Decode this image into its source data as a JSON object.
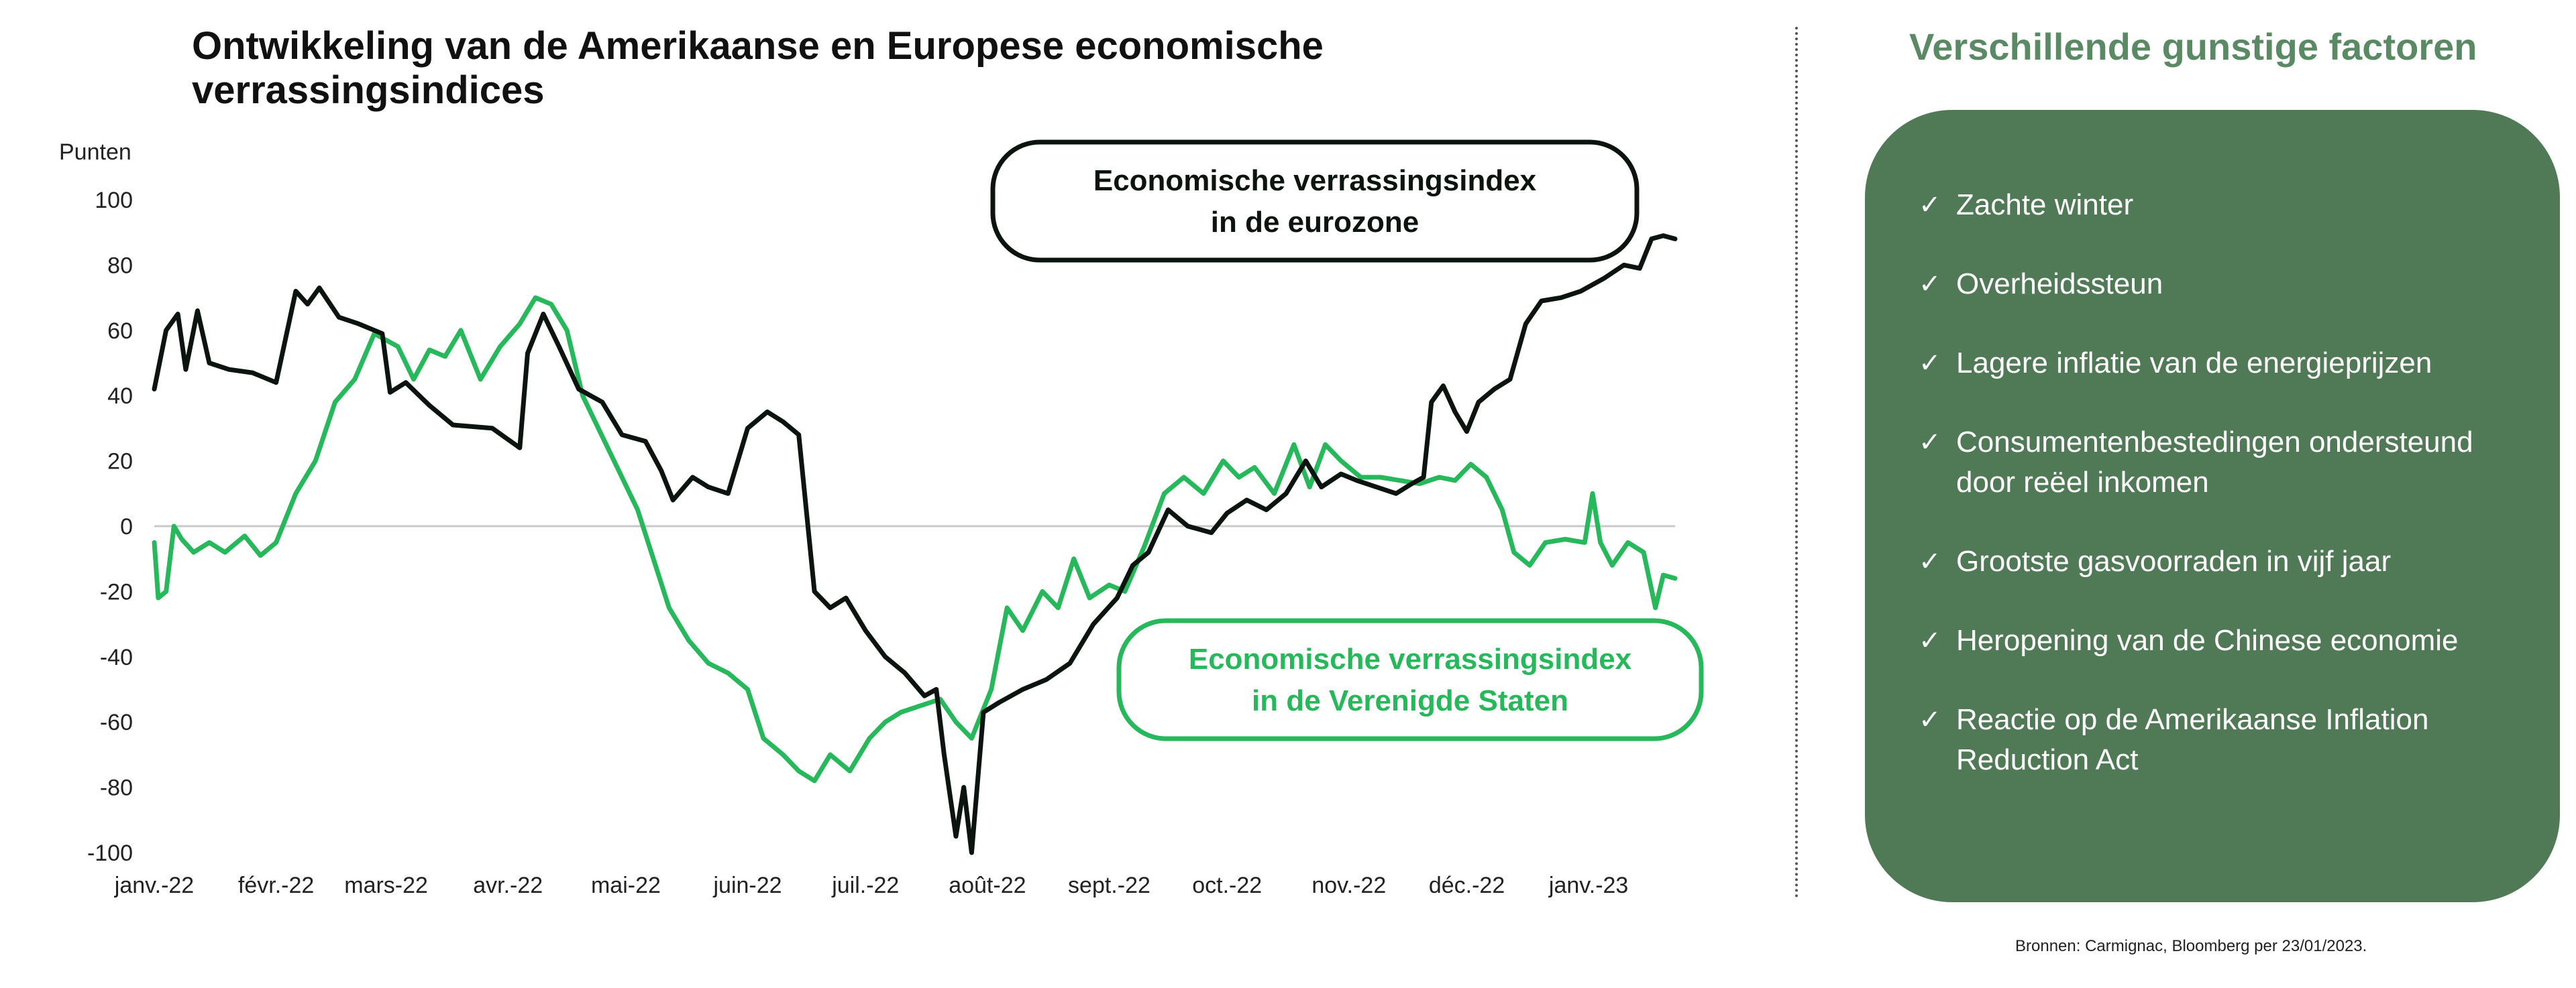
{
  "title": "Ontwikkeling van de Amerikaanse en Europese economische verrassingsindices",
  "colors": {
    "eurozone": "#0b140e",
    "us": "#26b85a",
    "panel": "#507a56",
    "panel_title": "#5a8a64"
  },
  "chart_data": {
    "type": "line",
    "title": "Ontwikkeling van de Amerikaanse en Europese economische verrassingsindices",
    "ylabel": "Punten",
    "ylim": [
      -100,
      100
    ],
    "yticks": [
      100,
      80,
      60,
      40,
      20,
      0,
      -20,
      -40,
      -60,
      -80,
      -100
    ],
    "xticks": [
      "janv.-22",
      "févr.-22",
      "mars-22",
      "avr.-22",
      "mai-22",
      "juin-22",
      "juil.-22",
      "août-22",
      "sept.-22",
      "oct.-22",
      "nov.-22",
      "déc.-22",
      "janv.-23"
    ],
    "xlim": [
      "2022-01-01",
      "2023-01-23"
    ],
    "grid": false,
    "series": [
      {
        "name": "Economische verrassingsindex in de eurozone",
        "color": "#0b140e",
        "points": [
          [
            "2022-01-01",
            42
          ],
          [
            "2022-01-04",
            60
          ],
          [
            "2022-01-07",
            65
          ],
          [
            "2022-01-09",
            48
          ],
          [
            "2022-01-12",
            66
          ],
          [
            "2022-01-15",
            50
          ],
          [
            "2022-01-20",
            48
          ],
          [
            "2022-01-26",
            47
          ],
          [
            "2022-02-01",
            44
          ],
          [
            "2022-02-06",
            72
          ],
          [
            "2022-02-09",
            68
          ],
          [
            "2022-02-12",
            73
          ],
          [
            "2022-02-17",
            64
          ],
          [
            "2022-02-22",
            62
          ],
          [
            "2022-02-28",
            59
          ],
          [
            "2022-03-02",
            41
          ],
          [
            "2022-03-06",
            44
          ],
          [
            "2022-03-12",
            37
          ],
          [
            "2022-03-18",
            31
          ],
          [
            "2022-03-28",
            30
          ],
          [
            "2022-04-04",
            24
          ],
          [
            "2022-04-06",
            53
          ],
          [
            "2022-04-10",
            65
          ],
          [
            "2022-04-14",
            55
          ],
          [
            "2022-04-19",
            42
          ],
          [
            "2022-04-25",
            38
          ],
          [
            "2022-04-30",
            28
          ],
          [
            "2022-05-06",
            26
          ],
          [
            "2022-05-10",
            17
          ],
          [
            "2022-05-13",
            8
          ],
          [
            "2022-05-18",
            15
          ],
          [
            "2022-05-22",
            12
          ],
          [
            "2022-05-27",
            10
          ],
          [
            "2022-06-01",
            30
          ],
          [
            "2022-06-06",
            35
          ],
          [
            "2022-06-10",
            32
          ],
          [
            "2022-06-14",
            28
          ],
          [
            "2022-06-18",
            -20
          ],
          [
            "2022-06-22",
            -25
          ],
          [
            "2022-06-26",
            -22
          ],
          [
            "2022-07-01",
            -32
          ],
          [
            "2022-07-06",
            -40
          ],
          [
            "2022-07-11",
            -45
          ],
          [
            "2022-07-16",
            -52
          ],
          [
            "2022-07-19",
            -50
          ],
          [
            "2022-07-21",
            -70
          ],
          [
            "2022-07-24",
            -95
          ],
          [
            "2022-07-26",
            -80
          ],
          [
            "2022-07-28",
            -100
          ],
          [
            "2022-07-31",
            -57
          ],
          [
            "2022-08-04",
            -54
          ],
          [
            "2022-08-10",
            -50
          ],
          [
            "2022-08-16",
            -47
          ],
          [
            "2022-08-22",
            -42
          ],
          [
            "2022-08-28",
            -30
          ],
          [
            "2022-09-03",
            -22
          ],
          [
            "2022-09-07",
            -12
          ],
          [
            "2022-09-11",
            -8
          ],
          [
            "2022-09-16",
            5
          ],
          [
            "2022-09-21",
            0
          ],
          [
            "2022-09-27",
            -2
          ],
          [
            "2022-10-01",
            4
          ],
          [
            "2022-10-06",
            8
          ],
          [
            "2022-10-11",
            5
          ],
          [
            "2022-10-16",
            10
          ],
          [
            "2022-10-21",
            20
          ],
          [
            "2022-10-25",
            12
          ],
          [
            "2022-10-30",
            16
          ],
          [
            "2022-11-03",
            14
          ],
          [
            "2022-11-08",
            12
          ],
          [
            "2022-11-13",
            10
          ],
          [
            "2022-11-17",
            13
          ],
          [
            "2022-11-20",
            15
          ],
          [
            "2022-11-22",
            38
          ],
          [
            "2022-11-25",
            43
          ],
          [
            "2022-11-28",
            35
          ],
          [
            "2022-12-01",
            29
          ],
          [
            "2022-12-04",
            38
          ],
          [
            "2022-12-08",
            42
          ],
          [
            "2022-12-12",
            45
          ],
          [
            "2022-12-16",
            62
          ],
          [
            "2022-12-20",
            69
          ],
          [
            "2022-12-25",
            70
          ],
          [
            "2022-12-30",
            72
          ],
          [
            "2023-01-05",
            76
          ],
          [
            "2023-01-10",
            80
          ],
          [
            "2023-01-14",
            79
          ],
          [
            "2023-01-17",
            88
          ],
          [
            "2023-01-20",
            89
          ],
          [
            "2023-01-23",
            88
          ]
        ]
      },
      {
        "name": "Economische verrassingsindex in de Verenigde Staten",
        "color": "#26b85a",
        "points": [
          [
            "2022-01-01",
            -5
          ],
          [
            "2022-01-02",
            -22
          ],
          [
            "2022-01-04",
            -20
          ],
          [
            "2022-01-06",
            0
          ],
          [
            "2022-01-08",
            -4
          ],
          [
            "2022-01-11",
            -8
          ],
          [
            "2022-01-15",
            -5
          ],
          [
            "2022-01-19",
            -8
          ],
          [
            "2022-01-24",
            -3
          ],
          [
            "2022-01-28",
            -9
          ],
          [
            "2022-02-01",
            -5
          ],
          [
            "2022-02-06",
            10
          ],
          [
            "2022-02-11",
            20
          ],
          [
            "2022-02-16",
            38
          ],
          [
            "2022-02-21",
            45
          ],
          [
            "2022-02-26",
            59
          ],
          [
            "2022-03-04",
            55
          ],
          [
            "2022-03-08",
            45
          ],
          [
            "2022-03-12",
            54
          ],
          [
            "2022-03-16",
            52
          ],
          [
            "2022-03-20",
            60
          ],
          [
            "2022-03-25",
            45
          ],
          [
            "2022-03-30",
            55
          ],
          [
            "2022-04-04",
            62
          ],
          [
            "2022-04-08",
            70
          ],
          [
            "2022-04-12",
            68
          ],
          [
            "2022-04-16",
            60
          ],
          [
            "2022-04-20",
            40
          ],
          [
            "2022-04-24",
            30
          ],
          [
            "2022-04-28",
            20
          ],
          [
            "2022-05-04",
            5
          ],
          [
            "2022-05-08",
            -10
          ],
          [
            "2022-05-12",
            -25
          ],
          [
            "2022-05-17",
            -35
          ],
          [
            "2022-05-22",
            -42
          ],
          [
            "2022-05-27",
            -45
          ],
          [
            "2022-06-01",
            -50
          ],
          [
            "2022-06-05",
            -65
          ],
          [
            "2022-06-10",
            -70
          ],
          [
            "2022-06-14",
            -75
          ],
          [
            "2022-06-18",
            -78
          ],
          [
            "2022-06-22",
            -70
          ],
          [
            "2022-06-27",
            -75
          ],
          [
            "2022-07-02",
            -65
          ],
          [
            "2022-07-06",
            -60
          ],
          [
            "2022-07-10",
            -57
          ],
          [
            "2022-07-15",
            -55
          ],
          [
            "2022-07-20",
            -53
          ],
          [
            "2022-07-24",
            -60
          ],
          [
            "2022-07-28",
            -65
          ],
          [
            "2022-08-02",
            -50
          ],
          [
            "2022-08-06",
            -25
          ],
          [
            "2022-08-10",
            -32
          ],
          [
            "2022-08-15",
            -20
          ],
          [
            "2022-08-19",
            -25
          ],
          [
            "2022-08-23",
            -10
          ],
          [
            "2022-08-27",
            -22
          ],
          [
            "2022-09-01",
            -18
          ],
          [
            "2022-09-05",
            -20
          ],
          [
            "2022-09-10",
            -6
          ],
          [
            "2022-09-15",
            10
          ],
          [
            "2022-09-20",
            15
          ],
          [
            "2022-09-25",
            10
          ],
          [
            "2022-09-30",
            20
          ],
          [
            "2022-10-04",
            15
          ],
          [
            "2022-10-08",
            18
          ],
          [
            "2022-10-13",
            10
          ],
          [
            "2022-10-18",
            25
          ],
          [
            "2022-10-22",
            12
          ],
          [
            "2022-10-26",
            25
          ],
          [
            "2022-10-30",
            20
          ],
          [
            "2022-11-04",
            15
          ],
          [
            "2022-11-09",
            15
          ],
          [
            "2022-11-14",
            14
          ],
          [
            "2022-11-19",
            13
          ],
          [
            "2022-11-24",
            15
          ],
          [
            "2022-11-28",
            14
          ],
          [
            "2022-12-02",
            19
          ],
          [
            "2022-12-06",
            15
          ],
          [
            "2022-12-10",
            5
          ],
          [
            "2022-12-13",
            -8
          ],
          [
            "2022-12-17",
            -12
          ],
          [
            "2022-12-21",
            -5
          ],
          [
            "2022-12-26",
            -4
          ],
          [
            "2022-12-31",
            -5
          ],
          [
            "2023-01-02",
            10
          ],
          [
            "2023-01-04",
            -5
          ],
          [
            "2023-01-07",
            -12
          ],
          [
            "2023-01-11",
            -5
          ],
          [
            "2023-01-15",
            -8
          ],
          [
            "2023-01-18",
            -25
          ],
          [
            "2023-01-20",
            -15
          ],
          [
            "2023-01-23",
            -16
          ]
        ]
      }
    ],
    "annotations": [
      {
        "series": 0,
        "label": [
          "Economische verrassingsindex",
          "in de eurozone"
        ]
      },
      {
        "series": 1,
        "label": [
          "Economische verrassingsindex",
          "in de Verenigde Staten"
        ]
      }
    ]
  },
  "panel": {
    "title": "Verschillende gunstige factoren",
    "items": [
      "Zachte winter",
      "Overheidssteun",
      "Lagere inflatie van de energieprijzen",
      "Consumentenbestedingen ondersteund door reëel inkomen",
      "Grootste gasvoorraden in vijf jaar",
      "Heropening van de Chinese economie",
      "Reactie op de Amerikaanse Inflation Reduction Act"
    ]
  },
  "source": "Bronnen: Carmignac, Bloomberg per 23/01/2023."
}
